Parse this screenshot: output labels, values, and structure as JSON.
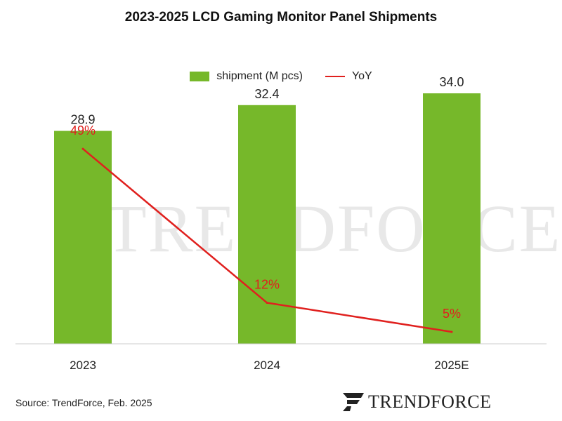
{
  "chart_data": {
    "type": "bar",
    "title": "2023-2025 LCD Gaming  Monitor  Panel Shipments",
    "categories": [
      "2023",
      "2024",
      "2025E"
    ],
    "series": [
      {
        "name": "shipment (M pcs)",
        "type": "bar",
        "values": [
          28.9,
          32.4,
          34.0
        ],
        "labels": [
          "28.9",
          "32.4",
          "34.0"
        ],
        "color": "#76b82a"
      },
      {
        "name": "YoY",
        "type": "line",
        "values": [
          49,
          12,
          5
        ],
        "labels": [
          "49%",
          "12%",
          "5%"
        ],
        "color": "#e0201e"
      }
    ],
    "legend_position": "top",
    "grid": false
  },
  "watermark": "TRENDFORCE",
  "source": "Source: TrendForce, Feb. 2025",
  "logo": {
    "text": "TRENDFORCE",
    "color": "#222222"
  }
}
